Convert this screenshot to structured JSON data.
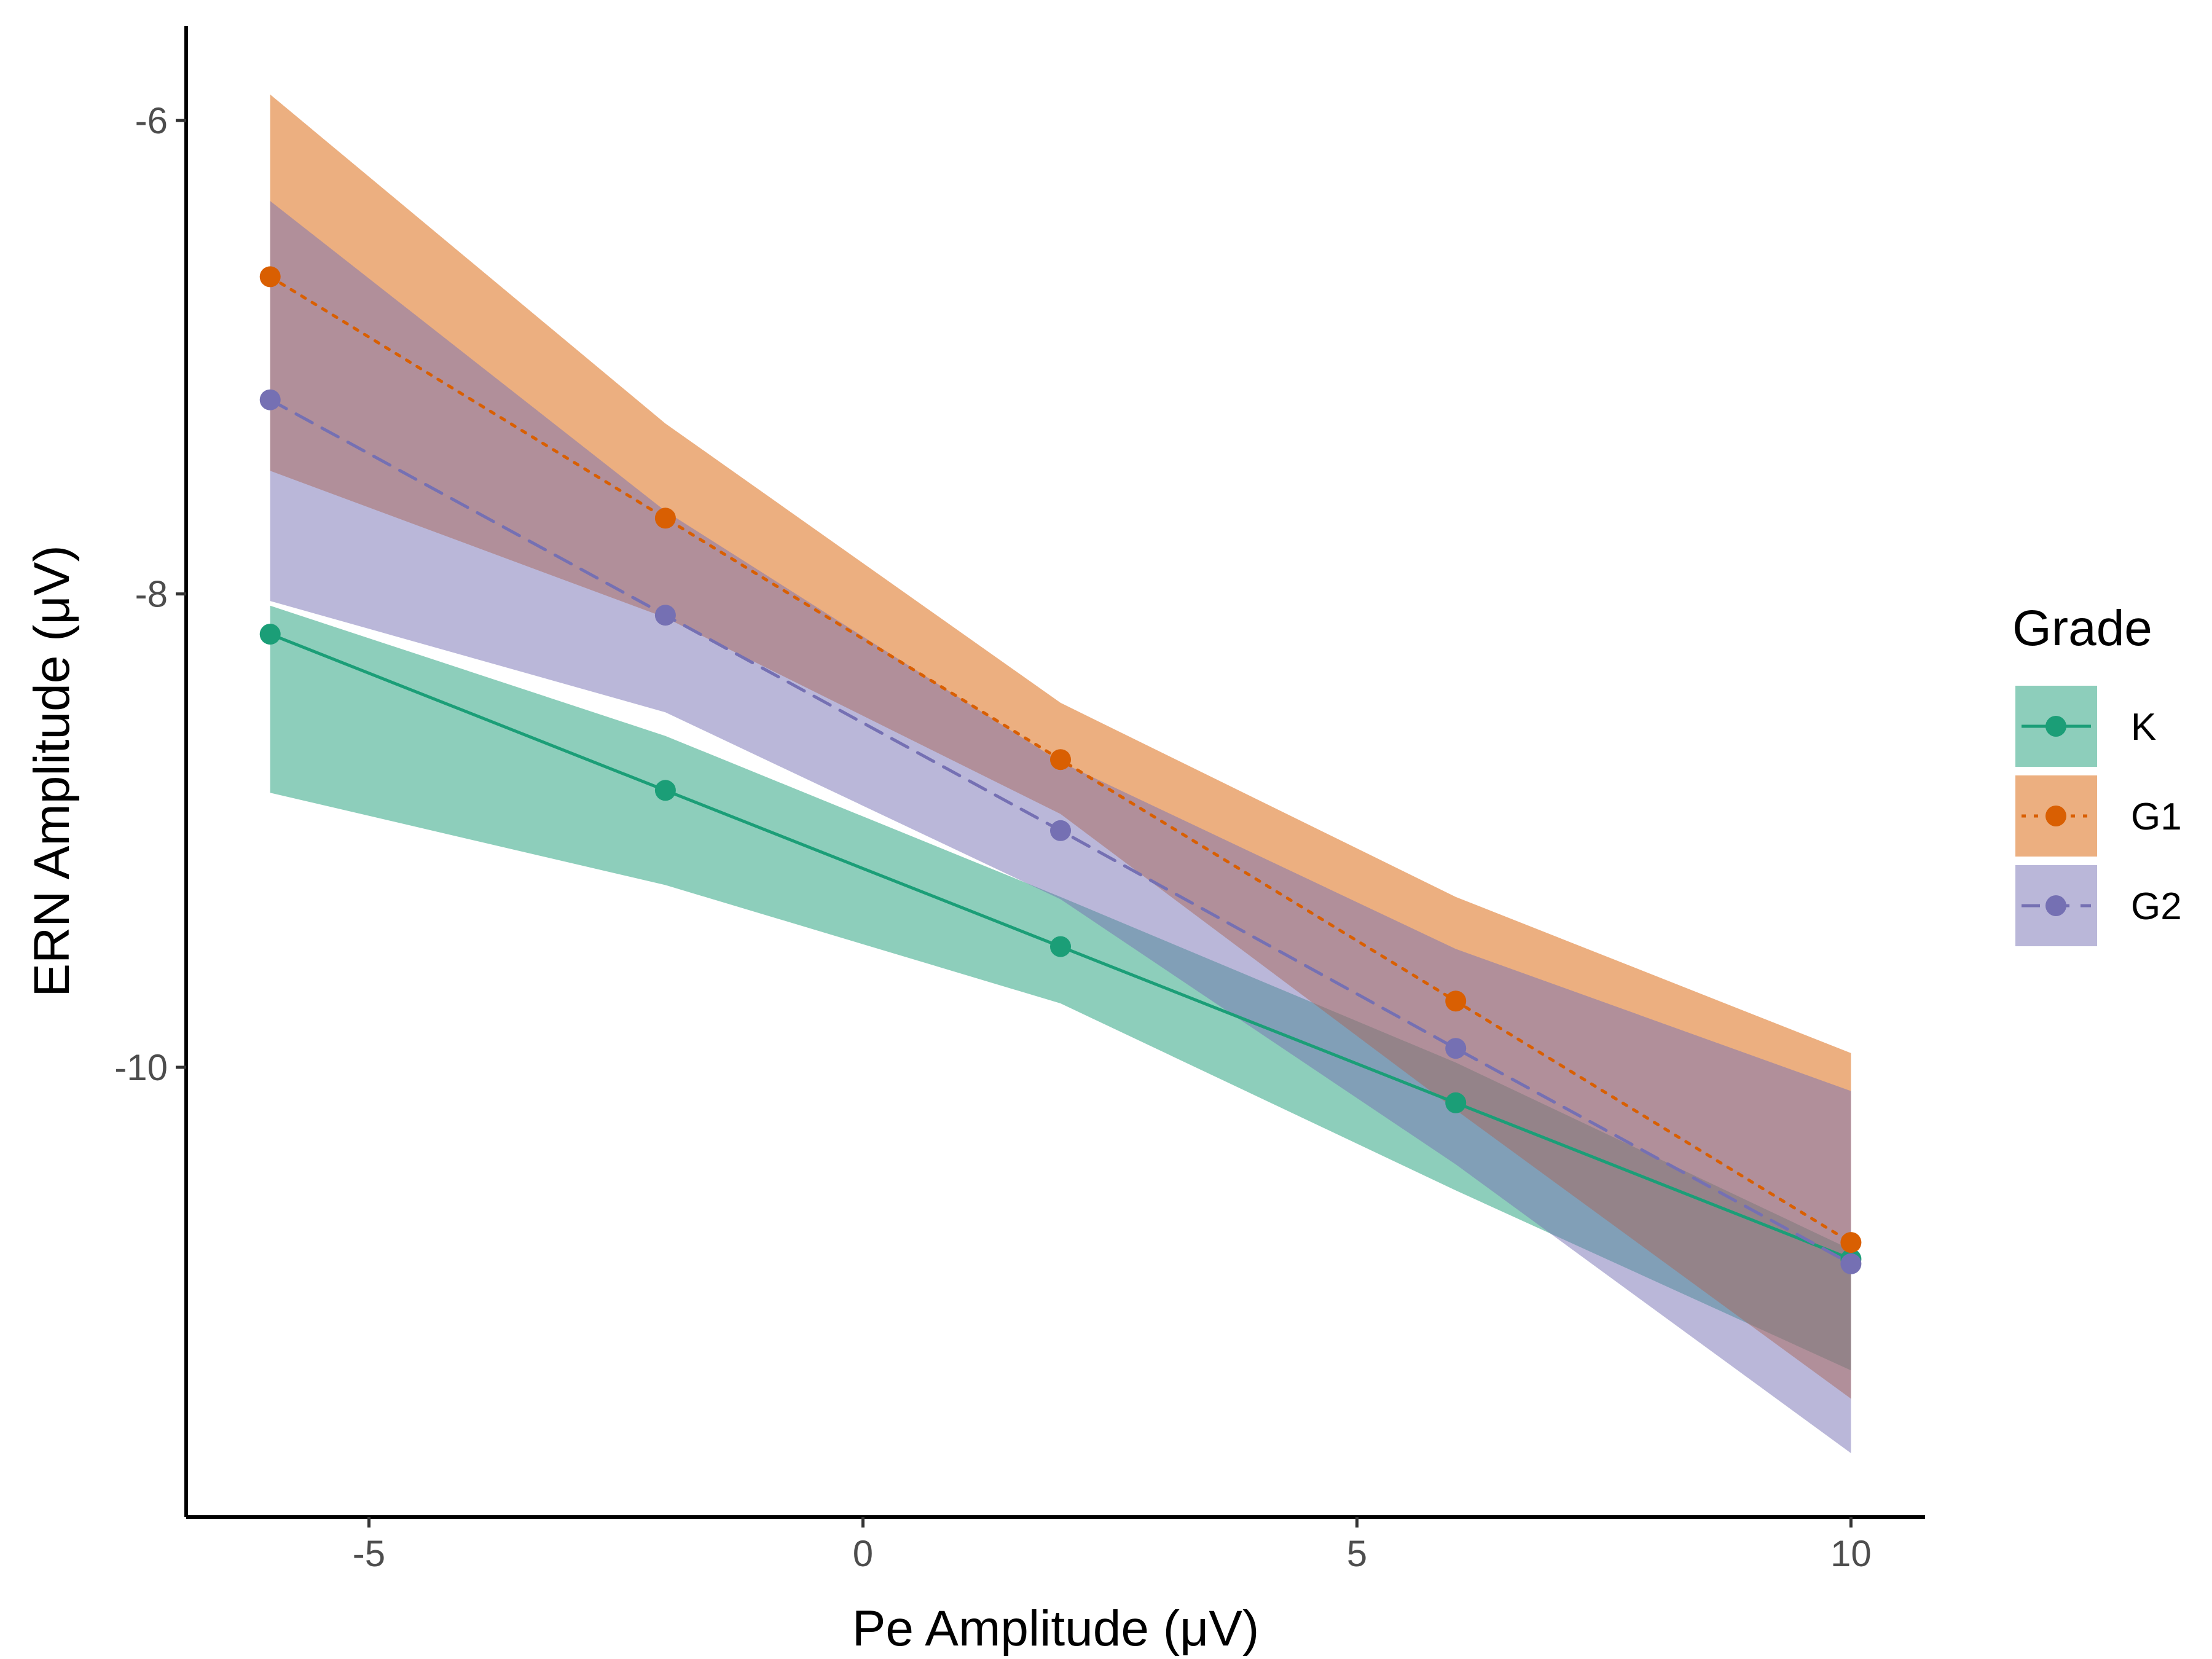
{
  "chart_data": {
    "type": "line",
    "xlabel": "Pe Amplitude (μV)",
    "ylabel": "ERN Amplitude (μV)",
    "xlim": [
      -6.85,
      10.75
    ],
    "ylim": [
      -11.9,
      -5.6
    ],
    "xticks": [
      -5,
      0,
      5,
      10
    ],
    "yticks": [
      -10,
      -8,
      -6
    ],
    "xtick_labels": [
      "-5",
      "0",
      "5",
      "10"
    ],
    "ytick_labels": [
      "-10",
      "-8",
      "-6"
    ],
    "grid": false,
    "legend": {
      "title": "Grade",
      "position": "right"
    },
    "x": [
      -6,
      -2,
      2,
      6,
      10
    ],
    "series": [
      {
        "name": "K",
        "color": "#1b9e77",
        "line_style": "solid",
        "values": [
          -8.17,
          -8.83,
          -9.49,
          -10.15,
          -10.81
        ],
        "lower": [
          -8.84,
          -9.23,
          -9.73,
          -10.52,
          -11.28
        ],
        "upper": [
          -8.05,
          -8.6,
          -9.28,
          -9.98,
          -10.77
        ]
      },
      {
        "name": "G1",
        "color": "#d95f02",
        "line_style": "dotted",
        "values": [
          -6.66,
          -7.68,
          -8.7,
          -9.72,
          -10.74
        ],
        "lower": [
          -7.48,
          -8.1,
          -8.93,
          -10.18,
          -11.4
        ],
        "upper": [
          -5.89,
          -7.28,
          -8.46,
          -9.28,
          -9.94
        ]
      },
      {
        "name": "G2",
        "color": "#7570b3",
        "line_style": "dashed",
        "values": [
          -7.18,
          -8.09,
          -9.0,
          -9.92,
          -10.83
        ],
        "lower": [
          -8.03,
          -8.5,
          -9.29,
          -10.41,
          -11.63
        ],
        "upper": [
          -6.34,
          -7.65,
          -8.71,
          -9.5,
          -10.1
        ]
      }
    ]
  }
}
